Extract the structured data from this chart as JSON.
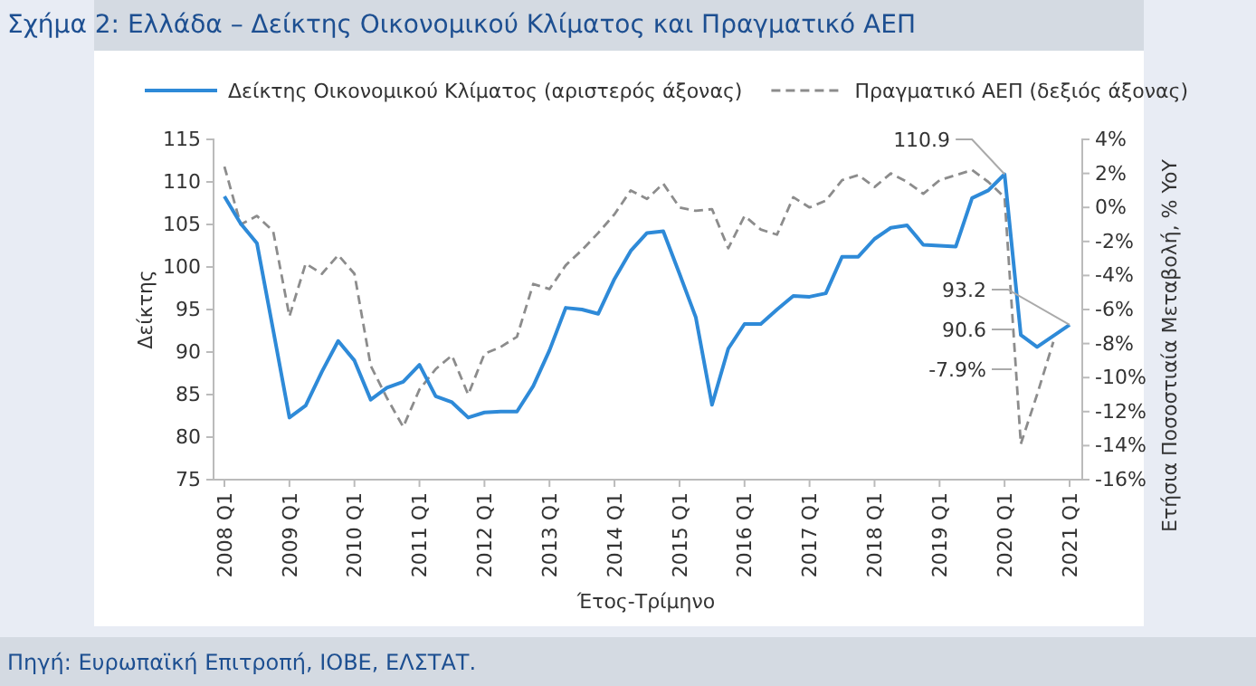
{
  "chart_data": {
    "type": "line",
    "title": "Σχήμα 2: Ελλάδα – Δείκτης Οικονομικού Κλίματος και Πραγματικό ΑΕΠ",
    "xlabel": "Έτος-Τρίμηνο",
    "ylabel": "Δείκτης",
    "y2label": "Ετήσια Ποσοστιαία Μεταβολή, % YoY",
    "categories": [
      "2008 Q1",
      null,
      null,
      null,
      "2009 Q1",
      null,
      null,
      null,
      "2010 Q1",
      null,
      null,
      null,
      "2011 Q1",
      null,
      null,
      null,
      "2012 Q1",
      null,
      null,
      null,
      "2013 Q1",
      null,
      null,
      null,
      "2014 Q1",
      null,
      null,
      null,
      "2015 Q1",
      null,
      null,
      null,
      "2016 Q1",
      null,
      null,
      null,
      "2017 Q1",
      null,
      null,
      null,
      "2018 Q1",
      null,
      null,
      null,
      "2019 Q1",
      null,
      null,
      null,
      "2020 Q1",
      null,
      null,
      null,
      "2021 Q1"
    ],
    "series": [
      {
        "name": "Δείκτης Οικονομικού Κλίματος (αριστερός άξονας)",
        "color": "#2e8ad8",
        "line_style": "solid",
        "values": [
          108.3,
          105.1,
          102.8,
          92.6,
          82.3,
          83.7,
          87.7,
          91.3,
          89.0,
          84.4,
          85.8,
          86.5,
          88.5,
          84.8,
          84.1,
          82.3,
          82.9,
          83.0,
          83.0,
          86.0,
          90.2,
          95.2,
          95.0,
          94.5,
          98.6,
          101.9,
          104.0,
          104.2,
          99.2,
          94.1,
          83.8,
          90.4,
          93.3,
          93.3,
          95.0,
          96.6,
          96.5,
          96.9,
          101.2,
          101.2,
          103.3,
          104.6,
          104.9,
          102.6,
          102.5,
          102.4,
          108.1,
          109.0,
          110.9,
          92.0,
          90.6,
          91.9,
          93.2
        ]
      },
      {
        "name": "Πραγματικό ΑΕΠ (δεξιός άξονας)",
        "color": "#8c8c8c",
        "line_style": "dashed",
        "axis": "y2",
        "values": [
          2.4,
          -1.0,
          -0.5,
          -1.4,
          -6.4,
          -3.3,
          -3.9,
          -2.8,
          -3.9,
          -9.3,
          -11.2,
          -12.9,
          -10.7,
          -9.5,
          -8.7,
          -11.0,
          -8.6,
          -8.2,
          -7.6,
          -4.5,
          -4.8,
          -3.4,
          -2.5,
          -1.5,
          -0.4,
          1.0,
          0.5,
          1.4,
          0.0,
          -0.2,
          -0.1,
          -2.4,
          -0.5,
          -1.3,
          -1.6,
          0.6,
          0.0,
          0.4,
          1.6,
          1.9,
          1.2,
          2.0,
          1.5,
          0.8,
          1.6,
          1.9,
          2.2,
          1.5,
          0.6,
          -13.9,
          -11.0,
          -7.9,
          null
        ]
      }
    ],
    "ylim": [
      75,
      115
    ],
    "yticks": [
      75,
      80,
      85,
      90,
      95,
      100,
      105,
      110,
      115
    ],
    "y2lim": [
      -16,
      4
    ],
    "y2ticks": [
      {
        "value": -16,
        "label": "-16%"
      },
      {
        "value": -14,
        "label": "-14%"
      },
      {
        "value": -12,
        "label": "-12%"
      },
      {
        "value": -10,
        "label": "-10%"
      },
      {
        "value": -8,
        "label": "-8%"
      },
      {
        "value": -6,
        "label": "-6%"
      },
      {
        "value": -4,
        "label": "-4%"
      },
      {
        "value": -2,
        "label": "-2%"
      },
      {
        "value": 0,
        "label": "0%"
      },
      {
        "value": 2,
        "label": "2%"
      },
      {
        "value": 4,
        "label": "4%"
      }
    ],
    "annotations": [
      {
        "text": "110.9",
        "x": "2020 Q1",
        "y": 110.9
      },
      {
        "text": "93.2",
        "x": "2021 Q1",
        "y": 93.2
      },
      "90.6",
      "-7.9%",
      "Πηγή: Ευρωπαϊκή Επιτροπή, ΙΟΒΕ, ΕΛΣΤΑΤ."
    ],
    "legend": "top",
    "grid": false,
    "marker": "none"
  }
}
